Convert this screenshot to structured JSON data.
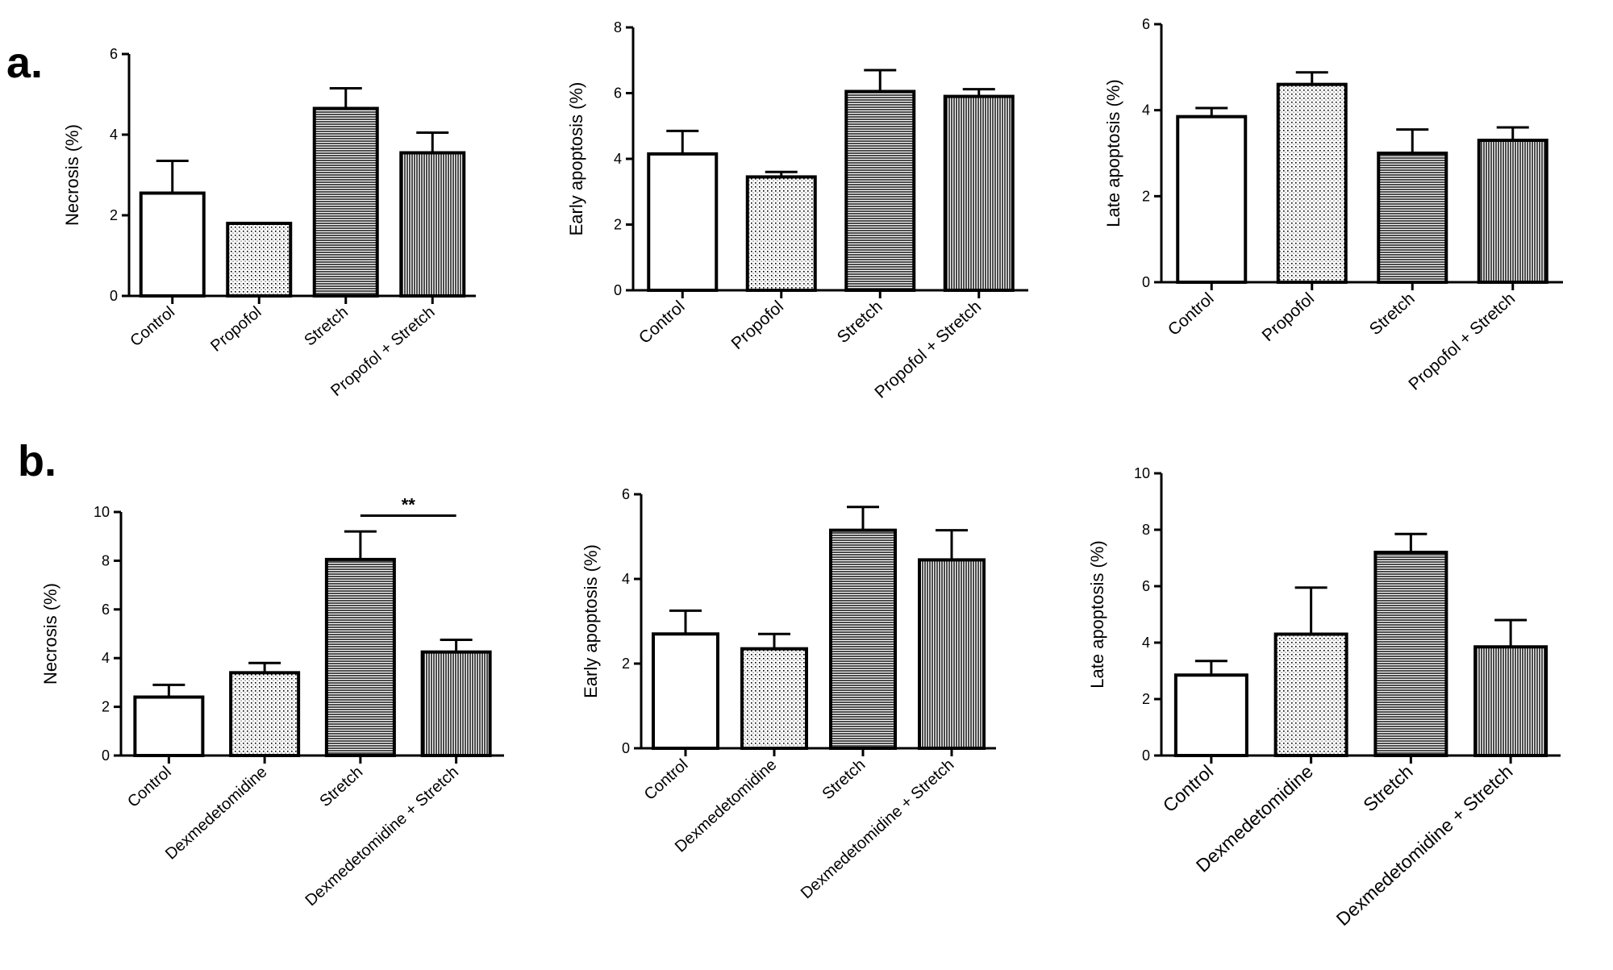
{
  "panel_labels": [
    "a.",
    "b."
  ],
  "chart_data": [
    {
      "type": "bar",
      "panel": "a.",
      "title": "",
      "xlabel": "",
      "ylabel": "Necrosis (%)",
      "ylim": [
        0,
        6
      ],
      "yticks": [
        0,
        2,
        4,
        6
      ],
      "categories": [
        "Control",
        "Propofol",
        "Stretch",
        "Propofol + Stretch"
      ],
      "values": [
        2.55,
        1.8,
        4.65,
        3.55
      ],
      "errors": [
        0.8,
        0.0,
        0.5,
        0.5
      ],
      "patterns": [
        "none",
        "dots",
        "hlines",
        "vlines"
      ]
    },
    {
      "type": "bar",
      "panel": "a.",
      "title": "",
      "xlabel": "",
      "ylabel": "Early apoptosis (%)",
      "ylim": [
        0,
        8
      ],
      "yticks": [
        0,
        2,
        4,
        6,
        8
      ],
      "categories": [
        "Control",
        "Propofol",
        "Stretch",
        "Propofol + Stretch"
      ],
      "values": [
        4.15,
        3.45,
        6.05,
        5.9
      ],
      "errors": [
        0.7,
        0.15,
        0.65,
        0.22
      ],
      "patterns": [
        "none",
        "dots",
        "hlines",
        "vlines"
      ]
    },
    {
      "type": "bar",
      "panel": "a.",
      "title": "",
      "xlabel": "",
      "ylabel": "Late apoptosis (%)",
      "ylim": [
        0,
        6
      ],
      "yticks": [
        0,
        2,
        4,
        6
      ],
      "categories": [
        "Control",
        "Propofol",
        "Stretch",
        "Propofol + Stretch"
      ],
      "values": [
        3.85,
        4.6,
        3.0,
        3.3
      ],
      "errors": [
        0.2,
        0.28,
        0.55,
        0.3
      ],
      "patterns": [
        "none",
        "dots",
        "hlines",
        "vlines"
      ]
    },
    {
      "type": "bar",
      "panel": "b.",
      "title": "",
      "xlabel": "",
      "ylabel": "Necrosis (%)",
      "ylim": [
        0,
        10
      ],
      "yticks": [
        0,
        2,
        4,
        6,
        8,
        10
      ],
      "categories": [
        "Control",
        "Dexmedetomidine",
        "Stretch",
        "Dexmedetomidine + Stretch"
      ],
      "values": [
        2.4,
        3.4,
        8.05,
        4.25
      ],
      "errors": [
        0.5,
        0.4,
        1.15,
        0.5
      ],
      "patterns": [
        "none",
        "dots",
        "hlines",
        "vlines"
      ],
      "significance": {
        "from": 2,
        "to": 3,
        "label": "**",
        "y": 9.85
      }
    },
    {
      "type": "bar",
      "panel": "b.",
      "title": "",
      "xlabel": "",
      "ylabel": "Early apoptosis (%)",
      "ylim": [
        0,
        6
      ],
      "yticks": [
        0,
        2,
        4,
        6
      ],
      "categories": [
        "Control",
        "Dexmedetomidine",
        "Stretch",
        "Dexmedetomidine + Stretch"
      ],
      "values": [
        2.7,
        2.35,
        5.15,
        4.45
      ],
      "errors": [
        0.55,
        0.35,
        0.55,
        0.7
      ],
      "patterns": [
        "none",
        "dots",
        "hlines",
        "vlines"
      ]
    },
    {
      "type": "bar",
      "panel": "b.",
      "title": "",
      "xlabel": "",
      "ylabel": "Late apoptosis (%)",
      "ylim": [
        0,
        10
      ],
      "yticks": [
        0,
        2,
        4,
        6,
        8,
        10
      ],
      "categories": [
        "Control",
        "Dexmedetomidine",
        "Stretch",
        "Dexmedetomidine + Stretch"
      ],
      "values": [
        2.85,
        4.3,
        7.2,
        3.85
      ],
      "errors": [
        0.5,
        1.65,
        0.65,
        0.95
      ],
      "patterns": [
        "none",
        "dots",
        "hlines",
        "vlines"
      ]
    }
  ]
}
